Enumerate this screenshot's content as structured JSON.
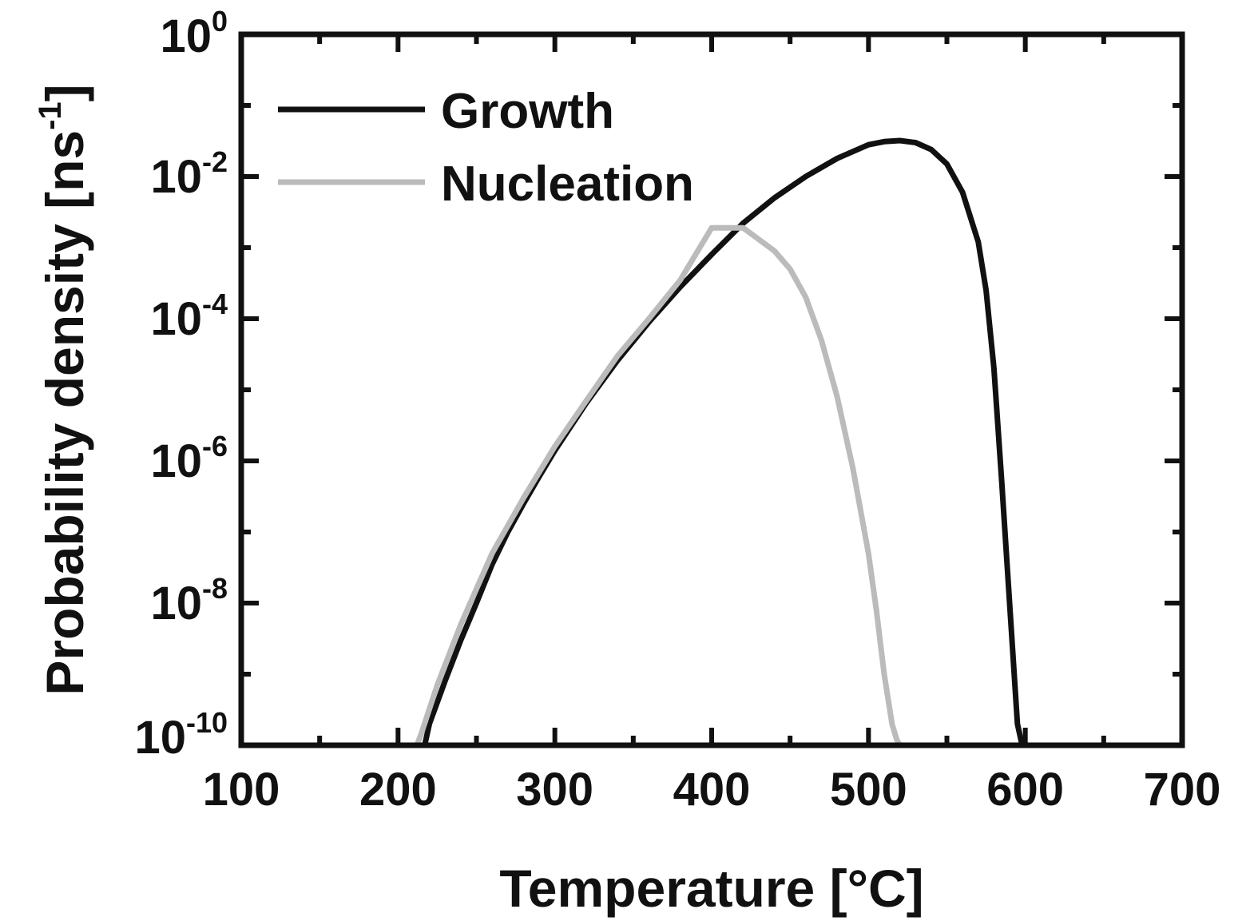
{
  "chart_data": {
    "type": "line",
    "xlabel": "Temperature [°C]",
    "ylabel_main": "Probability density [ns",
    "ylabel_exp": "-1",
    "ylabel_close": "]",
    "xlim": [
      100,
      700
    ],
    "ylim": [
      1e-10,
      1
    ],
    "yscale": "log",
    "grid": false,
    "legend_position": "top-left",
    "x_ticks": [
      100,
      200,
      300,
      400,
      500,
      600,
      700
    ],
    "x_tick_labels": [
      "100",
      "200",
      "300",
      "400",
      "500",
      "600",
      "700"
    ],
    "y_ticks": [
      1e-10,
      1e-08,
      1e-06,
      0.0001,
      0.01,
      1
    ],
    "y_tick_base": "10",
    "y_tick_exponents": [
      "-10",
      "-8",
      "-6",
      "-4",
      "-2",
      "0"
    ],
    "series": [
      {
        "name": "Growth",
        "color": "#111111",
        "x": [
          217,
          220,
          230,
          240,
          250,
          260,
          270,
          280,
          290,
          300,
          320,
          340,
          360,
          380,
          400,
          420,
          440,
          460,
          480,
          500,
          510,
          520,
          530,
          540,
          550,
          560,
          570,
          575,
          580,
          585,
          590,
          595,
          598
        ],
        "y": [
          1e-10,
          2e-10,
          8e-10,
          3e-09,
          1e-08,
          3.5e-08,
          1e-07,
          2.5e-07,
          6e-07,
          1.4e-06,
          6.5e-06,
          2.6e-05,
          9e-05,
          0.00028,
          0.0008,
          0.0022,
          0.005,
          0.01,
          0.018,
          0.028,
          0.031,
          0.032,
          0.03,
          0.024,
          0.015,
          0.006,
          0.0012,
          0.00025,
          2e-05,
          5e-07,
          1e-08,
          2e-10,
          1e-10
        ]
      },
      {
        "name": "Nucleation",
        "color": "#bbbbbb",
        "x": [
          212,
          215,
          225,
          240,
          260,
          280,
          300,
          320,
          340,
          360,
          380,
          400,
          420,
          440,
          450,
          460,
          470,
          480,
          490,
          500,
          505,
          510,
          515,
          518,
          520
        ],
        "y": [
          1e-10,
          1.5e-10,
          7e-10,
          5e-09,
          5e-08,
          3e-07,
          1.6e-06,
          7e-06,
          3e-05,
          0.0001,
          0.00035,
          0.0019,
          0.0019,
          0.0009,
          0.0005,
          0.0002,
          5e-05,
          8e-06,
          8e-07,
          5e-08,
          8e-09,
          1e-09,
          2e-10,
          1.2e-10,
          1e-10
        ]
      }
    ]
  }
}
